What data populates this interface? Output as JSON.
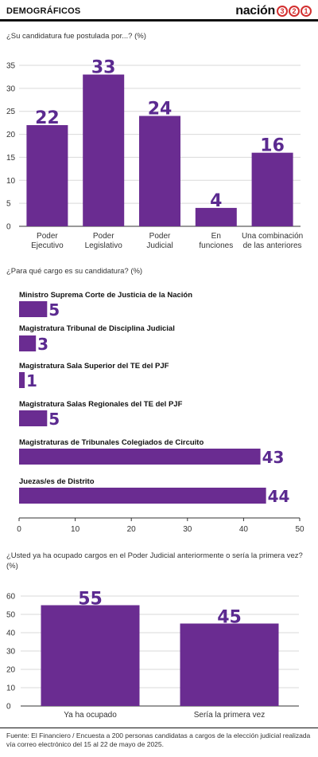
{
  "header": {
    "title": "DEMOGRÁFICOS",
    "logo_word": "nación",
    "logo_digits": [
      "3",
      "2",
      "1"
    ]
  },
  "colors": {
    "bar": "#6a2c91",
    "value_text": "#5b2a90",
    "grid": "#d9d9d9",
    "logo_accent": "#d32f2f"
  },
  "questions": {
    "q1": "¿Su candidatura fue postulada por...?  (%)",
    "q2": "¿Para qué cargo es su candidatura? (%)",
    "q3_line1": "¿Usted ya ha ocupado cargos en el Poder Judicial anteriormente o sería la primera vez?",
    "q3_line2": "(%)"
  },
  "chart_data": [
    {
      "type": "bar",
      "categories": [
        [
          "Poder",
          "Ejecutivo"
        ],
        [
          "Poder",
          "Legislativo"
        ],
        [
          "Poder",
          "Judicial"
        ],
        [
          "En",
          "funciones"
        ],
        [
          "Una combinación",
          "de las anteriores"
        ]
      ],
      "values": [
        22,
        33,
        24,
        4,
        16
      ],
      "ylim": [
        0,
        35
      ],
      "yticks": [
        0,
        5,
        10,
        15,
        20,
        25,
        30,
        35
      ],
      "grid": true
    },
    {
      "type": "bar",
      "orientation": "horizontal",
      "categories": [
        "Ministro Suprema Corte de Justicia de la Nación",
        "Magistratura Tribunal de Disciplina Judicial",
        "Magistratura Sala Superior del TE del PJF",
        "Magistratura Salas Regionales del TE del PJF",
        "Magistraturas de Tribunales Colegiados de Circuito",
        "Juezas/es de Distrito"
      ],
      "values": [
        5,
        3,
        1,
        5,
        43,
        44
      ],
      "xlim": [
        0,
        50
      ],
      "xticks": [
        0,
        10,
        20,
        30,
        40,
        50
      ],
      "grid": false
    },
    {
      "type": "bar",
      "categories": [
        "Ya ha ocupado",
        "Sería la primera vez"
      ],
      "values": [
        55,
        45
      ],
      "ylim": [
        0,
        60
      ],
      "yticks": [
        0,
        10,
        20,
        30,
        40,
        50,
        60
      ],
      "grid": true
    }
  ],
  "source": "Fuente: El Financiero / Encuesta a 200 personas candidatas a cargos de la elección judicial realizada vía correo electrónico del 15 al 22 de mayo de 2025."
}
